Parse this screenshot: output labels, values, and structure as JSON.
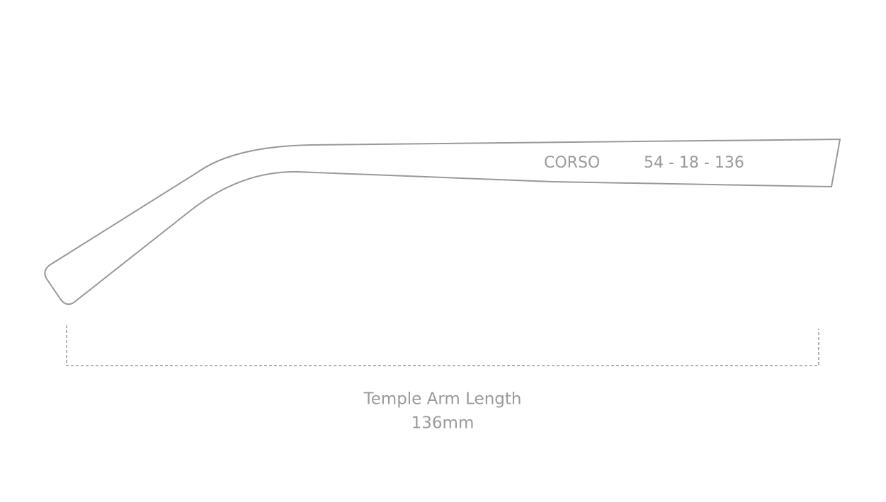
{
  "diagram": {
    "model_name": "CORSO",
    "sizes": "54 - 18 - 136",
    "measure_label": "Temple Arm Length",
    "measure_value": "136mm"
  }
}
